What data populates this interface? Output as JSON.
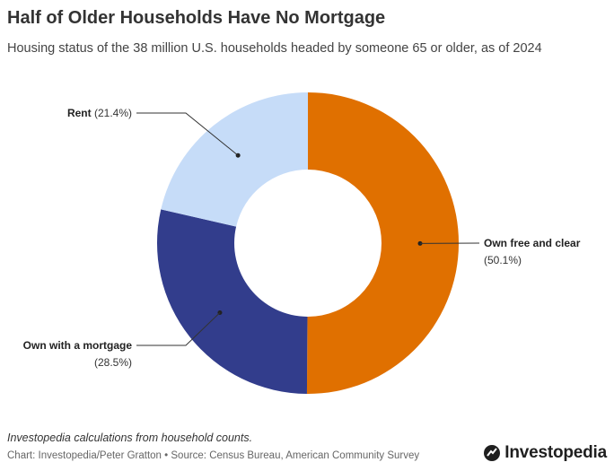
{
  "header": {
    "title": "Half of Older Households Have No Mortgage",
    "subtitle": "Housing status of the 38 million U.S. households headed by someone 65 or older, as of 2024"
  },
  "chart_data": {
    "type": "pie",
    "donut": true,
    "title": "Half of Older Households Have No Mortgage",
    "subtitle": "Housing status of the 38 million U.S. households headed by someone 65 or older, as of 2024",
    "slices": [
      {
        "name": "Own free and clear",
        "value": 50.1,
        "label": "(50.1%)",
        "color": "#E07000"
      },
      {
        "name": "Own with a mortgage",
        "value": 28.5,
        "label": "(28.5%)",
        "color": "#323D8C"
      },
      {
        "name": "Rent",
        "value": 21.4,
        "label": "(21.4%)",
        "color": "#C6DCF8"
      }
    ]
  },
  "footer": {
    "note": "Investopedia calculations from household counts.",
    "source": "Chart: Investopedia/Peter Gratton • Source: Census Bureau, American Community Survey",
    "brand": "Investopedia"
  }
}
